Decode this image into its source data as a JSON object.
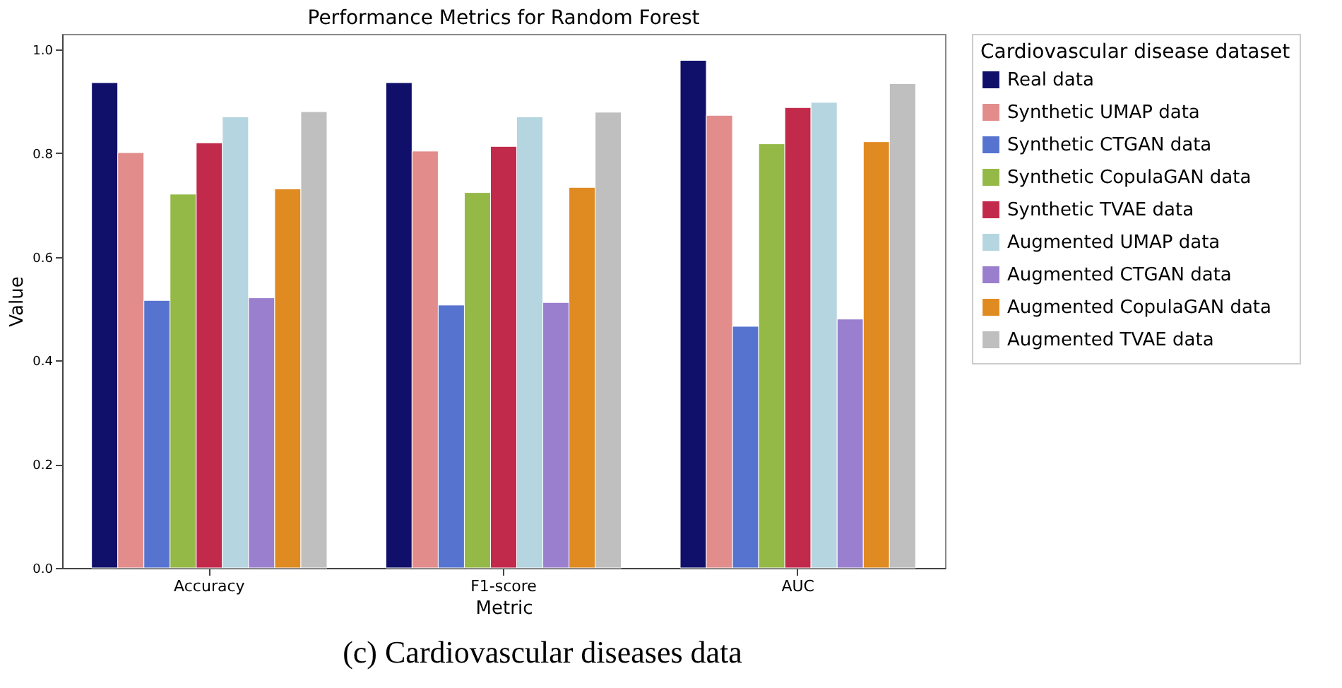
{
  "chart_data": {
    "type": "bar",
    "title": "Performance Metrics for Random Forest",
    "xlabel": "Metric",
    "ylabel": "Value",
    "legend_title": "Cardiovascular disease dataset",
    "categories": [
      "Accuracy",
      "F1-score",
      "AUC"
    ],
    "series": [
      {
        "name": "Real data",
        "color": "#10106b",
        "values": [
          0.936,
          0.936,
          0.979
        ]
      },
      {
        "name": "Synthetic UMAP data",
        "color": "#e28c8c",
        "values": [
          0.801,
          0.804,
          0.873
        ]
      },
      {
        "name": "Synthetic CTGAN data",
        "color": "#5673cf",
        "values": [
          0.516,
          0.507,
          0.466
        ]
      },
      {
        "name": "Synthetic CopulaGAN data",
        "color": "#94b946",
        "values": [
          0.721,
          0.724,
          0.818
        ]
      },
      {
        "name": "Synthetic TVAE data",
        "color": "#c22a4b",
        "values": [
          0.82,
          0.813,
          0.888
        ]
      },
      {
        "name": "Augmented UMAP data",
        "color": "#b5d5e0",
        "values": [
          0.87,
          0.87,
          0.898
        ]
      },
      {
        "name": "Augmented CTGAN data",
        "color": "#9a7fce",
        "values": [
          0.521,
          0.512,
          0.48
        ]
      },
      {
        "name": "Augmented CopulaGAN data",
        "color": "#e08a22",
        "values": [
          0.731,
          0.734,
          0.822
        ]
      },
      {
        "name": "Augmented TVAE data",
        "color": "#bfbfbf",
        "values": [
          0.88,
          0.879,
          0.934
        ]
      }
    ],
    "ylim": [
      0,
      1.03
    ],
    "yticks": [
      {
        "value": 0,
        "label": "0.0"
      },
      0.2,
      0.4,
      0.6,
      0.8,
      {
        "value": 1,
        "label": "1.0"
      }
    ],
    "grid": false,
    "legend": "right",
    "annotations": [
      "(c) Cardiovascular diseases data"
    ]
  }
}
